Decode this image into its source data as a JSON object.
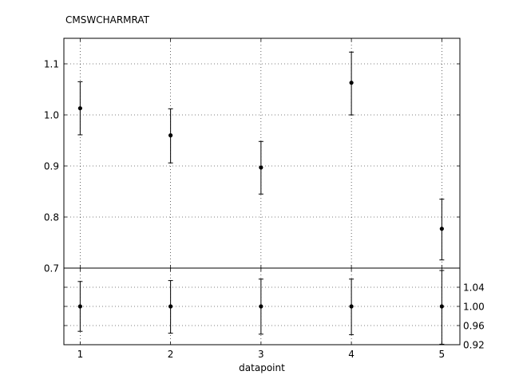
{
  "chart_data": [
    {
      "type": "scatter",
      "title": "CMSWCHARMRAT",
      "xlabel": "",
      "ylabel": "",
      "x": [
        1,
        2,
        3,
        4,
        5
      ],
      "xlim": [
        0.82,
        5.2
      ],
      "ylim": [
        0.7,
        1.15
      ],
      "yticks": [
        0.7,
        0.8,
        0.9,
        1.0,
        1.1
      ],
      "ytick_labels": [
        "0.7",
        "0.8",
        "0.9",
        "1.0",
        "1.1"
      ],
      "grid": true,
      "series": [
        {
          "values": [
            1.013,
            0.96,
            0.897,
            1.063,
            0.777
          ],
          "error_low": [
            0.052,
            0.054,
            0.052,
            0.063,
            0.061
          ],
          "error_high": [
            0.052,
            0.052,
            0.051,
            0.06,
            0.058
          ]
        }
      ]
    },
    {
      "type": "scatter",
      "title": "",
      "xlabel": "datapoint",
      "ylabel": "",
      "x": [
        1,
        2,
        3,
        4,
        5
      ],
      "xticks": [
        1,
        2,
        3,
        4,
        5
      ],
      "xtick_labels": [
        "1",
        "2",
        "3",
        "4",
        "5"
      ],
      "xlim": [
        0.82,
        5.2
      ],
      "ylim": [
        0.92,
        1.08
      ],
      "yticks": [
        0.92,
        0.96,
        1.0,
        1.04
      ],
      "ytick_labels": [
        "0.92",
        "0.96",
        "1.00",
        "1.04"
      ],
      "yaxis_side": "right",
      "grid": true,
      "series": [
        {
          "values": [
            1.0,
            1.0,
            1.0,
            1.0,
            1.0
          ],
          "error_low": [
            0.052,
            0.056,
            0.058,
            0.059,
            0.079
          ],
          "error_high": [
            0.052,
            0.054,
            0.057,
            0.057,
            0.075
          ]
        }
      ]
    }
  ]
}
